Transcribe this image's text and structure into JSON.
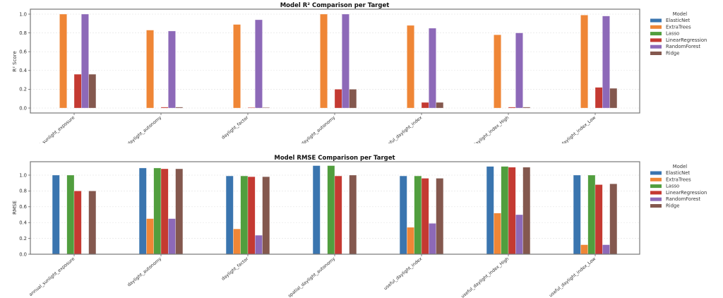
{
  "colors": {
    "ElasticNet": "#3a75af",
    "ExtraTrees": "#ef8636",
    "Lasso": "#519e3e",
    "LinearRegression": "#c43a32",
    "RandomForest": "#8d69b8",
    "Ridge": "#84584e"
  },
  "chart_data": [
    {
      "type": "bar",
      "title": "Model R² Comparison per Target",
      "xlabel": "",
      "ylabel": "R² Score",
      "ylim": [
        -0.05,
        1.05
      ],
      "yticks": [
        "0.0",
        "0.2",
        "0.4",
        "0.6",
        "0.8",
        "1.0"
      ],
      "ytick_values": [
        0.0,
        0.2,
        0.4,
        0.6,
        0.8,
        1.0
      ],
      "grid": true,
      "legend": {
        "title": "Model",
        "placement": "outside-right"
      },
      "categories": [
        "annual_sunlight_exposure",
        "daylight_autonomy",
        "daylight_factor",
        "spatial_daylight_autonomy",
        "useful_daylight_index",
        "useful_daylight_index_High",
        "useful_daylight_index_Low"
      ],
      "visible_tick_labels": [
        "ual_sunlight_exposure",
        "daylight_autonomy",
        "daylight_factor",
        "ial_daylight_autonomy",
        "useful_daylight_index",
        "l_daylight_index_High",
        "ul_daylight_index_Low"
      ],
      "series": [
        {
          "name": "ElasticNet",
          "values": [
            0,
            0,
            0,
            0,
            0,
            0,
            0
          ]
        },
        {
          "name": "ExtraTrees",
          "values": [
            1.0,
            0.83,
            0.89,
            1.0,
            0.88,
            0.78,
            0.99
          ]
        },
        {
          "name": "Lasso",
          "values": [
            0,
            0,
            0,
            0,
            0,
            0,
            0
          ]
        },
        {
          "name": "LinearRegression",
          "values": [
            0.36,
            0.01,
            0.005,
            0.2,
            0.06,
            0.01,
            0.22
          ]
        },
        {
          "name": "RandomForest",
          "values": [
            1.0,
            0.82,
            0.94,
            1.0,
            0.85,
            0.8,
            0.98
          ]
        },
        {
          "name": "Ridge",
          "values": [
            0.36,
            0.01,
            0.005,
            0.2,
            0.06,
            0.01,
            0.21
          ]
        }
      ]
    },
    {
      "type": "bar",
      "title": "Model RMSE Comparison per Target",
      "xlabel": "",
      "ylabel": "RMSE",
      "ylim": [
        0,
        1.17
      ],
      "yticks": [
        "0.0",
        "0.2",
        "0.4",
        "0.6",
        "0.8",
        "1.0"
      ],
      "ytick_values": [
        0.0,
        0.2,
        0.4,
        0.6,
        0.8,
        1.0
      ],
      "grid": true,
      "legend": {
        "title": "Model",
        "placement": "outside-right"
      },
      "categories": [
        "annual_sunlight_exposure",
        "daylight_autonomy",
        "daylight_factor",
        "spatial_daylight_autonomy",
        "useful_daylight_index",
        "useful_daylight_index_High",
        "useful_daylight_index_Low"
      ],
      "visible_tick_labels": [
        "annual_sunlight_exposure",
        "daylight_autonomy",
        "daylight_factor",
        "spatial_daylight_autonomy",
        "useful_daylight_index",
        "useful_daylight_index_High",
        "useful_daylight_index_Low"
      ],
      "series": [
        {
          "name": "ElasticNet",
          "values": [
            1.0,
            1.09,
            0.99,
            1.12,
            0.99,
            1.11,
            1.0
          ]
        },
        {
          "name": "ExtraTrees",
          "values": [
            0,
            0.45,
            0.32,
            0,
            0.34,
            0.52,
            0.12
          ]
        },
        {
          "name": "Lasso",
          "values": [
            1.0,
            1.09,
            0.99,
            1.12,
            0.99,
            1.11,
            1.0
          ]
        },
        {
          "name": "LinearRegression",
          "values": [
            0.8,
            1.08,
            0.98,
            0.99,
            0.96,
            1.1,
            0.88
          ]
        },
        {
          "name": "RandomForest",
          "values": [
            0,
            0.45,
            0.24,
            0,
            0.39,
            0.5,
            0.12
          ]
        },
        {
          "name": "Ridge",
          "values": [
            0.8,
            1.08,
            0.98,
            1.0,
            0.96,
            1.1,
            0.89
          ]
        }
      ]
    }
  ]
}
